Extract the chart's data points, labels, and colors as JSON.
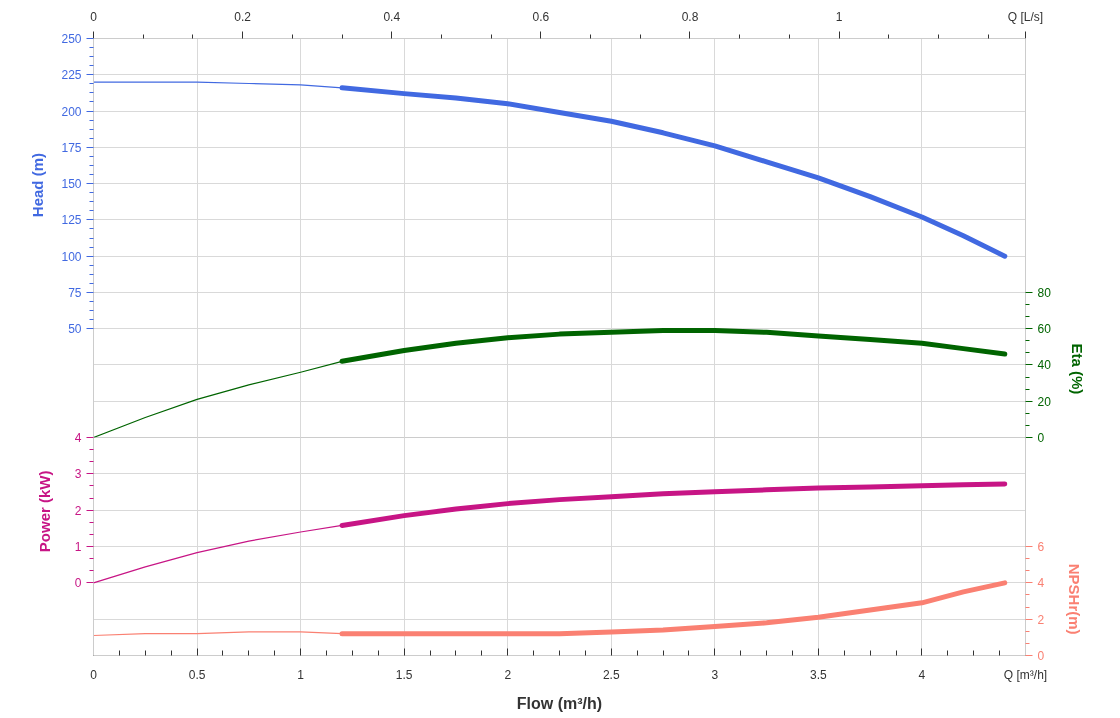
{
  "chart_data": [
    {
      "type": "line",
      "ylabel": "Head (m)",
      "y2label": "Eta (%)",
      "xlim": [
        0,
        4.5
      ],
      "xticks": [
        0,
        0.5,
        1,
        1.5,
        2,
        2.5,
        3,
        3.5,
        4
      ],
      "x2lim": [
        0,
        1.25
      ],
      "x2ticks": [
        0,
        0.2,
        0.4,
        0.6,
        0.8,
        1,
        {
          "value": 1.25,
          "label": "Q [L/s]"
        }
      ],
      "ylim": [
        -25,
        250
      ],
      "yticks": [
        50,
        75,
        100,
        125,
        150,
        175,
        200,
        225,
        250
      ],
      "y2lim": [
        0,
        220
      ],
      "y2ticks": [
        0,
        20,
        40,
        60,
        80
      ],
      "grid": true,
      "tick_labels": "y",
      "series": [
        {
          "color": "#4169e1",
          "x": [
            0,
            0.25,
            0.5,
            0.75,
            1,
            1.2
          ],
          "values": [
            220,
            220,
            220,
            219,
            218,
            216
          ]
        },
        {
          "color": "#4169e1",
          "x": [
            1.2,
            1.5,
            1.75,
            2,
            2.25,
            2.5,
            2.75,
            3,
            3.25,
            3.5,
            3.75,
            4,
            4.2,
            4.4
          ],
          "values": [
            216,
            212,
            209,
            205,
            199,
            193,
            185,
            176,
            165,
            154,
            141,
            127,
            114,
            100
          ]
        },
        {
          "color": "#006400",
          "axis": "y2",
          "x": [
            0,
            0.25,
            0.5,
            0.75,
            1,
            1.2
          ],
          "values": [
            0,
            11,
            21,
            29,
            36,
            42
          ]
        },
        {
          "color": "#006400",
          "axis": "y2",
          "x": [
            1.2,
            1.5,
            1.75,
            2,
            2.25,
            2.5,
            2.75,
            3,
            3.25,
            3.5,
            3.75,
            4,
            4.2,
            4.4
          ],
          "values": [
            42,
            48,
            52,
            55,
            57,
            58,
            59,
            59,
            58,
            56,
            54,
            52,
            49,
            46
          ]
        }
      ]
    },
    {
      "type": "line",
      "xlabel": "Flow (m³/h)",
      "ylabel": "Power (kW)",
      "y2label": "NPSHr(m)",
      "xlim": [
        0,
        4.5
      ],
      "xticks": [
        0,
        0.5,
        1,
        1.5,
        2,
        2.5,
        3,
        3.5,
        4,
        {
          "value": 4.5,
          "label": "Q [m³/h]"
        }
      ],
      "ylim": [
        -2,
        4
      ],
      "yticks": [
        0,
        1,
        2,
        3,
        4
      ],
      "y2lim": [
        0,
        12
      ],
      "y2ticks": [
        0,
        2,
        4,
        6
      ],
      "grid": true,
      "series": [
        {
          "color": "#c71585",
          "x": [
            0,
            0.25,
            0.5,
            0.75,
            1,
            1.2
          ],
          "values": [
            0,
            0.44,
            0.83,
            1.15,
            1.4,
            1.58
          ]
        },
        {
          "color": "#c71585",
          "x": [
            1.2,
            1.5,
            1.75,
            2,
            2.25,
            2.5,
            2.75,
            3,
            3.25,
            3.5,
            3.75,
            4,
            4.2,
            4.4
          ],
          "values": [
            1.58,
            1.85,
            2.03,
            2.18,
            2.29,
            2.37,
            2.45,
            2.51,
            2.56,
            2.61,
            2.64,
            2.67,
            2.7,
            2.72
          ]
        },
        {
          "color": "#fa8072",
          "axis": "y2",
          "x": [
            0,
            0.25,
            0.5,
            0.75,
            1,
            1.2
          ],
          "values": [
            1.1,
            1.2,
            1.2,
            1.3,
            1.3,
            1.2
          ]
        },
        {
          "color": "#fa8072",
          "axis": "y2",
          "x": [
            1.2,
            1.5,
            1.75,
            2,
            2.25,
            2.5,
            2.75,
            3,
            3.25,
            3.5,
            3.75,
            4,
            4.2,
            4.4
          ],
          "values": [
            1.2,
            1.2,
            1.2,
            1.2,
            1.2,
            1.3,
            1.4,
            1.6,
            1.8,
            2.1,
            2.5,
            2.9,
            3.5,
            4
          ]
        }
      ]
    }
  ]
}
